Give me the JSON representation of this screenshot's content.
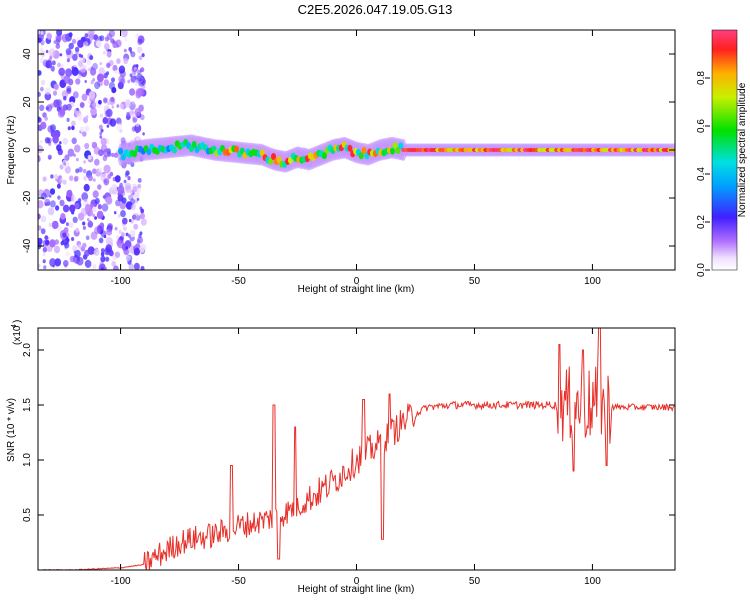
{
  "figure": {
    "title": "C2E5.2026.047.19.05.G13"
  },
  "chart_data": [
    {
      "type": "heatmap",
      "xlabel": "Height of straight line (km)",
      "ylabel": "Frequency (Hz)",
      "xlim": [
        -135,
        135
      ],
      "ylim": [
        -50,
        50
      ],
      "xticks": [
        -100,
        -50,
        0,
        50,
        100
      ],
      "yticks": [
        -40,
        -20,
        0,
        20,
        40
      ],
      "colorbar": {
        "label": "Normalized spectral amplitude",
        "range": [
          0,
          1
        ],
        "ticks": [
          0.0,
          0.2,
          0.4,
          0.6,
          0.8
        ],
        "colormap": "rainbow (white-violet-blue-cyan-green-yellow-red)"
      },
      "ridge": {
        "description": "Dominant frequency ridge (approximate center frequency, Hz) vs height",
        "x": [
          -100,
          -90,
          -80,
          -70,
          -60,
          -50,
          -40,
          -35,
          -30,
          -25,
          -20,
          -15,
          -10,
          -5,
          0,
          5,
          10,
          15,
          20,
          30,
          50,
          70,
          90,
          100,
          110,
          135
        ],
        "y": [
          -2,
          0,
          1,
          2,
          0,
          -1,
          -2,
          -4,
          -5,
          -3,
          -4,
          -2,
          0,
          1,
          -1,
          -2,
          0,
          1,
          0,
          0,
          0,
          0,
          0,
          0,
          0,
          0
        ]
      },
      "noise_region": {
        "x_range": [
          -135,
          -90
        ],
        "description": "broadband scattered noise across all frequencies"
      }
    },
    {
      "type": "line",
      "xlabel": "Height of straight line (km)",
      "ylabel": "SNR (10 * v/v)",
      "scale_label": "(x10",
      "scale_exponent": "4",
      "xlim": [
        -135,
        135
      ],
      "ylim": [
        0,
        2.2
      ],
      "xticks": [
        -100,
        -50,
        0,
        50,
        100
      ],
      "yticks": [
        0.5,
        1.0,
        1.5,
        2.0
      ],
      "ytick_labels": [
        "0.5",
        "1.0",
        "1.5",
        "2.0"
      ],
      "series": [
        {
          "color": "#e8302a",
          "x": [
            -135,
            -120,
            -100,
            -90,
            -85,
            -80,
            -75,
            -70,
            -65,
            -60,
            -55,
            -50,
            -45,
            -40,
            -35,
            -30,
            -25,
            -20,
            -15,
            -10,
            -5,
            0,
            5,
            10,
            15,
            20,
            25,
            30,
            40,
            50,
            60,
            70,
            80,
            85,
            90,
            95,
            100,
            105,
            110,
            120,
            135
          ],
          "y": [
            0.0,
            0.0,
            0.02,
            0.05,
            0.12,
            0.18,
            0.25,
            0.28,
            0.3,
            0.32,
            0.36,
            0.4,
            0.42,
            0.45,
            0.48,
            0.52,
            0.58,
            0.65,
            0.72,
            0.8,
            0.9,
            1.0,
            1.08,
            1.15,
            1.25,
            1.35,
            1.42,
            1.48,
            1.5,
            1.5,
            1.5,
            1.5,
            1.5,
            1.5,
            1.5,
            1.5,
            1.5,
            1.5,
            1.48,
            1.48,
            1.48
          ]
        }
      ],
      "spikes": [
        {
          "x": -53,
          "y": 0.95
        },
        {
          "x": -35,
          "y": 1.5
        },
        {
          "x": -33,
          "y": 0.1
        },
        {
          "x": -26,
          "y": 1.3
        },
        {
          "x": 3,
          "y": 1.55
        },
        {
          "x": 11,
          "y": 0.28
        },
        {
          "x": 14,
          "y": 1.6
        },
        {
          "x": 86,
          "y": 2.05
        },
        {
          "x": 92,
          "y": 0.9
        },
        {
          "x": 96,
          "y": 2.0
        },
        {
          "x": 103,
          "y": 2.2
        },
        {
          "x": 106,
          "y": 0.95
        }
      ]
    }
  ]
}
